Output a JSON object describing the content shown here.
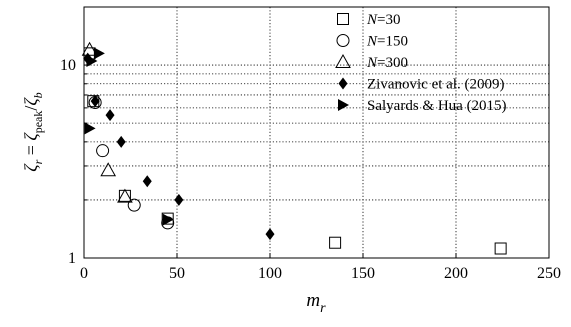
{
  "chart_data": {
    "type": "scatter",
    "xlabel_main": "m",
    "xlabel_sub": "r",
    "ylabel_parts": {
      "zeta": "ζ",
      "r": "r",
      "eq": " = ",
      "peak": "peak",
      "slash": "/",
      "b": "b"
    },
    "x_axis": {
      "range": [
        0,
        250
      ],
      "ticks": [
        0,
        50,
        100,
        150,
        200,
        250
      ],
      "tick_labels": [
        "0",
        "50",
        "100",
        "150",
        "200",
        "250"
      ]
    },
    "y_axis": {
      "scale": "log",
      "range": [
        1,
        20
      ],
      "labeled_ticks": [
        1,
        10
      ],
      "tick_labels": [
        "1",
        "10"
      ],
      "minor_ticks": [
        2,
        3,
        4,
        5,
        6,
        7,
        8,
        9
      ]
    },
    "grid": true,
    "legend_position": "top-right",
    "series": [
      {
        "name_italic": "N",
        "name_rest": "=30",
        "marker": "open-square",
        "points": [
          [
            3,
            11.5
          ],
          [
            5,
            6.5
          ],
          [
            22,
            2.1
          ],
          [
            45,
            1.6
          ],
          [
            135,
            1.2
          ],
          [
            224,
            1.12
          ]
        ]
      },
      {
        "name_italic": "N",
        "name_rest": "=150",
        "marker": "open-circle",
        "points": [
          [
            6,
            6.4
          ],
          [
            10,
            3.6
          ],
          [
            27,
            1.88
          ],
          [
            45,
            1.52
          ]
        ]
      },
      {
        "name_italic": "N",
        "name_rest": "=300",
        "marker": "open-triangle",
        "points": [
          [
            3,
            12
          ],
          [
            13,
            2.85
          ],
          [
            22,
            2.08
          ]
        ]
      },
      {
        "name_italic": "",
        "name_rest": "Zivanovic et al. (2009)",
        "marker": "filled-diamond",
        "points": [
          [
            2,
            10.8
          ],
          [
            6,
            6.5
          ],
          [
            14,
            5.5
          ],
          [
            20,
            4.0
          ],
          [
            34,
            2.5
          ],
          [
            51,
            2.0
          ],
          [
            100,
            1.33
          ]
        ]
      },
      {
        "name_italic": "",
        "name_rest": "Salyards & Hua (2015)",
        "marker": "filled-triangle-right",
        "points": [
          [
            4,
            10.5
          ],
          [
            8,
            11.5
          ],
          [
            3,
            4.7
          ],
          [
            45,
            1.58
          ]
        ]
      }
    ]
  }
}
